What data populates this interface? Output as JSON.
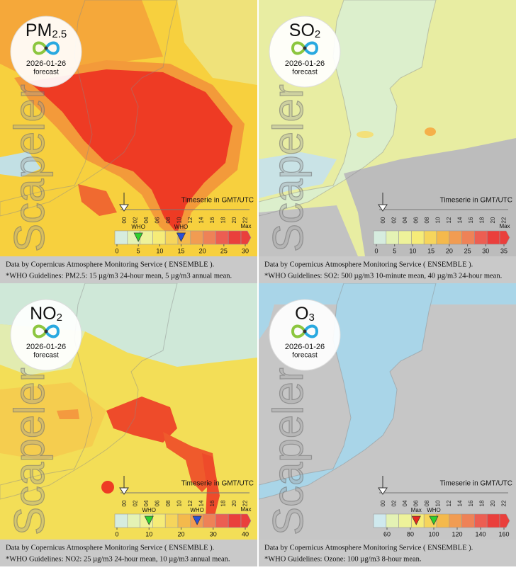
{
  "panels": [
    {
      "pollutant": "PM",
      "subscript": "2.5",
      "date": "2026-01-26",
      "note": "forecast",
      "watermark": "Scapeler",
      "timeline_title": "Timeserie in GMT/UTC",
      "hours": [
        "00",
        "02",
        "04",
        "06",
        "08",
        "10",
        "12",
        "14",
        "16",
        "18",
        "20",
        "22"
      ],
      "scale_lim": [
        0,
        30
      ],
      "scale_ticks": [
        0,
        5,
        10,
        15,
        20,
        25,
        30
      ],
      "max_label": "Max",
      "scale_colors": [
        "#d6ecdf",
        "#e4f2b4",
        "#eef29a",
        "#f6ec78",
        "#f6d55c",
        "#f4b94c",
        "#f19c52",
        "#ee8257",
        "#ec5e52",
        "#ea3f3c"
      ],
      "markers": [
        {
          "label": "WHO",
          "value": 5,
          "color": "#2fd12f"
        },
        {
          "label": "WHO",
          "value": 15,
          "color": "#2a4fd6"
        }
      ],
      "source": "Data by Copernicus Atmosphere Monitoring Service ( ENSEMBLE ).",
      "guideline": "*WHO Guidelines: PM2.5: 15 µg/m3 24-hour mean, 5 µg/m3 annual mean."
    },
    {
      "pollutant": "SO",
      "subscript": "2",
      "date": "2026-01-26",
      "note": "forecast",
      "watermark": "Scapeler",
      "timeline_title": "Timeserie in GMT/UTC",
      "hours": [
        "00",
        "02",
        "04",
        "06",
        "08",
        "10",
        "12",
        "14",
        "16",
        "18",
        "20",
        "22"
      ],
      "scale_lim": [
        0,
        35
      ],
      "scale_ticks": [
        0,
        5,
        10,
        15,
        20,
        25,
        30,
        35
      ],
      "max_label": "Max",
      "scale_colors": [
        "#d6ecdf",
        "#e4f2b4",
        "#eef29a",
        "#f6ec78",
        "#f6d55c",
        "#f4b94c",
        "#f19c52",
        "#ee8257",
        "#ec5e52",
        "#ea3f3c"
      ],
      "markers": [],
      "source": "Data by Copernicus Atmosphere Monitoring Service ( ENSEMBLE ).",
      "guideline": "*WHO Guidelines: SO2: 500 µg/m3 10-minute mean, 40 µg/m3 24-hour mean."
    },
    {
      "pollutant": "NO",
      "subscript": "2",
      "date": "2026-01-26",
      "note": "forecast",
      "watermark": "Scapeler",
      "timeline_title": "Timeserie in GMT/UTC",
      "hours": [
        "00",
        "02",
        "04",
        "06",
        "08",
        "10",
        "12",
        "14",
        "16",
        "18",
        "20",
        "22"
      ],
      "scale_lim": [
        0,
        40
      ],
      "scale_ticks": [
        0,
        10,
        20,
        30,
        40
      ],
      "max_label": "Max",
      "scale_colors": [
        "#d6ecdf",
        "#e4f2b4",
        "#eef29a",
        "#f6ec78",
        "#f6d55c",
        "#f4b94c",
        "#f19c52",
        "#ee8257",
        "#ec5e52",
        "#ea3f3c"
      ],
      "markers": [
        {
          "label": "WHO",
          "value": 10,
          "color": "#2fd12f"
        },
        {
          "label": "WHO",
          "value": 25,
          "color": "#2a4fd6"
        }
      ],
      "source": "Data by Copernicus Atmosphere Monitoring Service ( ENSEMBLE ).",
      "guideline": "*WHO Guidelines: NO2: 25 µg/m3 24-hour mean, 10 µg/m3 annual mean."
    },
    {
      "pollutant": "O",
      "subscript": "3",
      "date": "2026-01-26",
      "note": "forecast",
      "watermark": "Scapeler",
      "timeline_title": "Timeserie in GMT/UTC",
      "hours": [
        "00",
        "02",
        "04",
        "06",
        "08",
        "10",
        "12",
        "14",
        "16",
        "18",
        "20",
        "22"
      ],
      "scale_lim": [
        60,
        160
      ],
      "scale_ticks": [
        60,
        80,
        100,
        120,
        140,
        160
      ],
      "scale_colors": [
        "#cfe9ee",
        "#e4f2b4",
        "#eef29a",
        "#f6ec78",
        "#f6d55c",
        "#f4b94c",
        "#f19c52",
        "#ee8257",
        "#ec5e52",
        "#ea3f3c"
      ],
      "markers": [
        {
          "label": "Max",
          "value": 85,
          "color": "#e8281e"
        },
        {
          "label": "WHO",
          "value": 100,
          "color": "#2fd12f"
        }
      ],
      "source": "Data by Copernicus Atmosphere Monitoring Service ( ENSEMBLE ).",
      "guideline": "*WHO Guidelines: Ozone: 100 µg/m3 8-hour mean."
    }
  ]
}
